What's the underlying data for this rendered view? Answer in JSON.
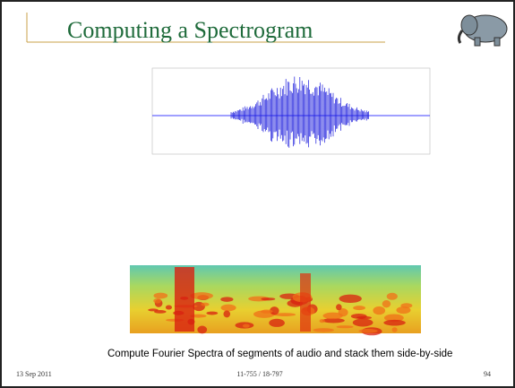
{
  "slide": {
    "title": "Computing a Spectrogram",
    "caption": "Compute Fourier Spectra of segments of audio and stack them side-by-side",
    "footer": {
      "date": "13 Sep 2011",
      "course": "11-755 / 18-797",
      "page": "94"
    }
  }
}
